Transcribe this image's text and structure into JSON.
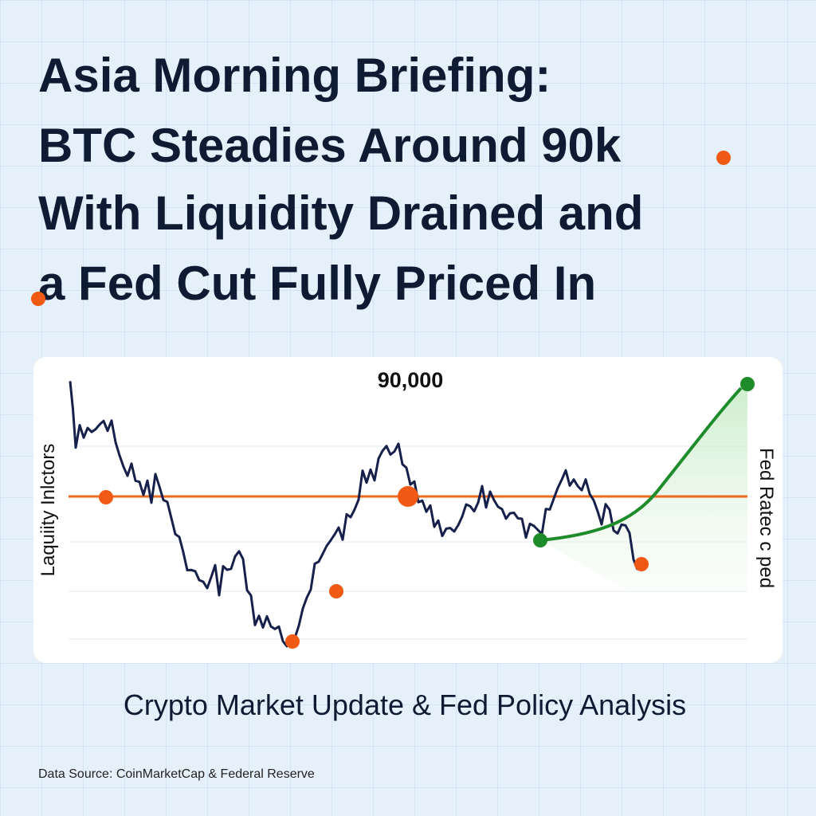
{
  "headline": {
    "lines": [
      "Asia Morning Briefing:",
      "BTC Steadies Around 90k",
      "With Liquidity Drained and",
      "a Fed Cut Fully Priced In"
    ]
  },
  "chart": {
    "level_label": "90,000",
    "left_label": "Laquiity Inlctors",
    "right_label": "Fed Ratec c ped"
  },
  "caption": "Crypto Market Update & Fed Policy Analysis",
  "source": "Data Source: CoinMarketCap & Federal Reserve"
}
